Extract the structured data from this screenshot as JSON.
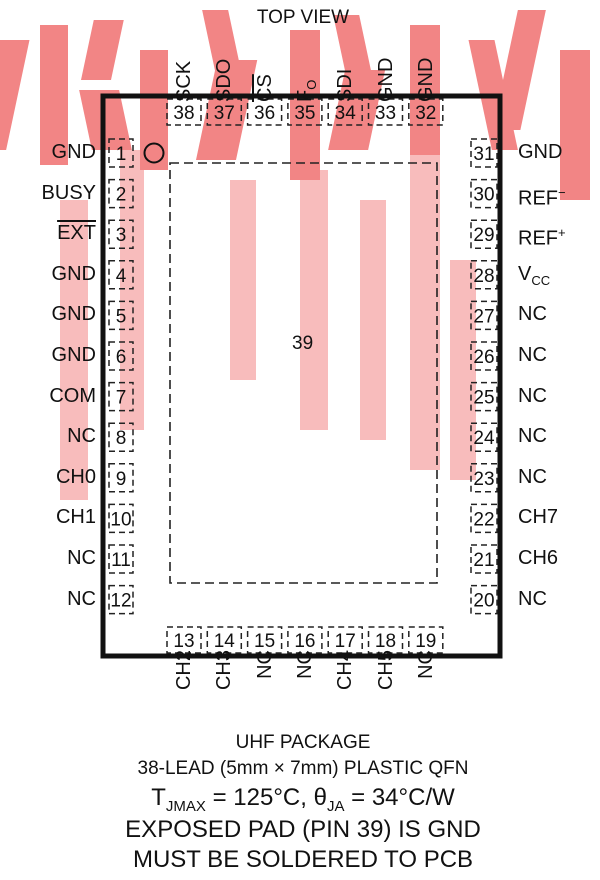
{
  "view_label": "TOP VIEW",
  "exposed_pad_number": "39",
  "left_pins": [
    {
      "num": "1",
      "name": "GND"
    },
    {
      "num": "2",
      "name": "BUSY"
    },
    {
      "num": "3",
      "name": "EXT"
    },
    {
      "num": "4",
      "name": "GND"
    },
    {
      "num": "5",
      "name": "GND"
    },
    {
      "num": "6",
      "name": "GND"
    },
    {
      "num": "7",
      "name": "COM"
    },
    {
      "num": "8",
      "name": "NC"
    },
    {
      "num": "9",
      "name": "CH0"
    },
    {
      "num": "10",
      "name": "CH1"
    },
    {
      "num": "11",
      "name": "NC"
    },
    {
      "num": "12",
      "name": "NC"
    }
  ],
  "right_pins": [
    {
      "num": "31",
      "name": "GND"
    },
    {
      "num": "30",
      "name": "REF",
      "sup": "−"
    },
    {
      "num": "29",
      "name": "REF",
      "sup": "+"
    },
    {
      "num": "28",
      "name": "V",
      "sub": "CC"
    },
    {
      "num": "27",
      "name": "NC"
    },
    {
      "num": "26",
      "name": "NC"
    },
    {
      "num": "25",
      "name": "NC"
    },
    {
      "num": "24",
      "name": "NC"
    },
    {
      "num": "23",
      "name": "NC"
    },
    {
      "num": "22",
      "name": "CH7"
    },
    {
      "num": "21",
      "name": "CH6"
    },
    {
      "num": "20",
      "name": "NC"
    }
  ],
  "top_pins": [
    {
      "num": "38",
      "name": "SCK"
    },
    {
      "num": "37",
      "name": "SDO"
    },
    {
      "num": "36",
      "name": "CS"
    },
    {
      "num": "35",
      "name": "F",
      "sub": "O"
    },
    {
      "num": "34",
      "name": "SDI"
    },
    {
      "num": "33",
      "name": "GND"
    },
    {
      "num": "32",
      "name": "GND"
    }
  ],
  "bottom_pins": [
    {
      "num": "13",
      "name": "CH2"
    },
    {
      "num": "14",
      "name": "CH3"
    },
    {
      "num": "15",
      "name": "NC"
    },
    {
      "num": "16",
      "name": "NC"
    },
    {
      "num": "17",
      "name": "CH4"
    },
    {
      "num": "18",
      "name": "CH5"
    },
    {
      "num": "19",
      "name": "NC"
    }
  ],
  "caption": {
    "line1": "UHF PACKAGE",
    "line2": "38-LEAD (5mm × 7mm) PLASTIC QFN",
    "thermal": {
      "t": "T",
      "t_sub": "JMAX",
      "t_val": " = 125°C, ",
      "theta": "θ",
      "theta_sub": "JA",
      "theta_val": " = 34°C/W"
    },
    "line4": "EXPOSED PAD (PIN 39) IS GND",
    "line5": "MUST BE SOLDERED TO PCB"
  },
  "watermark_color": "#f07070"
}
